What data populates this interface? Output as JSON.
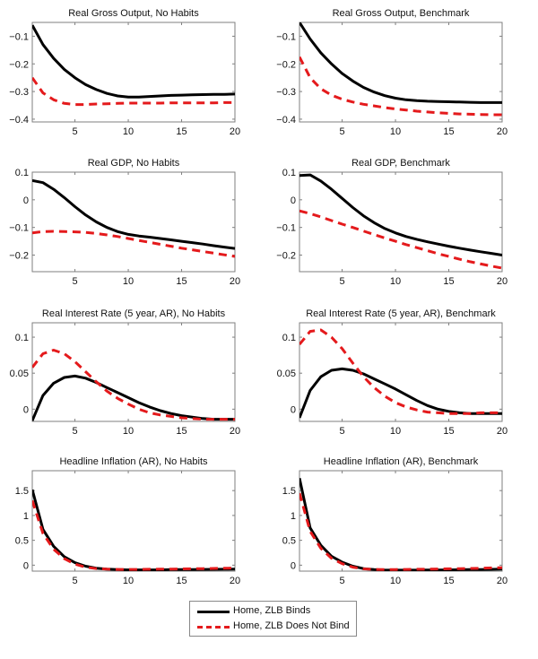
{
  "legend": {
    "items": [
      {
        "label": "Home, ZLB Binds",
        "color": "#000000",
        "style": "solid"
      },
      {
        "label": "Home, ZLB Does Not Bind",
        "color": "#e41a1c",
        "style": "dashed"
      }
    ]
  },
  "chart_data": [
    {
      "type": "line",
      "title": "Real Gross Output, No Habits",
      "xlabel": "",
      "ylabel": "",
      "xlim": [
        1,
        20
      ],
      "ylim": [
        -0.41,
        -0.05
      ],
      "xticks": [
        5,
        10,
        15,
        20
      ],
      "xtick_labels": [
        "5",
        "10",
        "15",
        "20"
      ],
      "yticks": [
        -0.1,
        -0.2,
        -0.3,
        -0.4
      ],
      "ytick_labels": [
        "-0.1",
        "-0.2",
        "-0.3",
        "-0.4"
      ],
      "grid": false,
      "x": [
        1,
        2,
        3,
        4,
        5,
        6,
        7,
        8,
        9,
        10,
        11,
        12,
        13,
        14,
        15,
        16,
        17,
        18,
        19,
        20
      ],
      "series": [
        {
          "name": "Home, ZLB Binds",
          "values": [
            -0.06,
            -0.13,
            -0.18,
            -0.22,
            -0.25,
            -0.275,
            -0.293,
            -0.307,
            -0.316,
            -0.32,
            -0.32,
            -0.318,
            -0.316,
            -0.314,
            -0.313,
            -0.312,
            -0.311,
            -0.31,
            -0.31,
            -0.309
          ]
        },
        {
          "name": "Home, ZLB Does Not Bind",
          "values": [
            -0.25,
            -0.305,
            -0.33,
            -0.343,
            -0.347,
            -0.347,
            -0.345,
            -0.344,
            -0.343,
            -0.342,
            -0.342,
            -0.342,
            -0.342,
            -0.341,
            -0.341,
            -0.341,
            -0.341,
            -0.341,
            -0.34,
            -0.34
          ]
        }
      ]
    },
    {
      "type": "line",
      "title": "Real Gross Output, Benchmark",
      "xlabel": "",
      "ylabel": "",
      "xlim": [
        1,
        20
      ],
      "ylim": [
        -0.41,
        -0.05
      ],
      "xticks": [
        5,
        10,
        15,
        20
      ],
      "xtick_labels": [
        "5",
        "10",
        "15",
        "20"
      ],
      "yticks": [
        -0.1,
        -0.2,
        -0.3,
        -0.4
      ],
      "ytick_labels": [
        "-0.1",
        "-0.2",
        "-0.3",
        "-0.4"
      ],
      "grid": false,
      "x": [
        1,
        2,
        3,
        4,
        5,
        6,
        7,
        8,
        9,
        10,
        11,
        12,
        13,
        14,
        15,
        16,
        17,
        18,
        19,
        20
      ],
      "series": [
        {
          "name": "Home, ZLB Binds",
          "values": [
            -0.05,
            -0.11,
            -0.16,
            -0.2,
            -0.235,
            -0.262,
            -0.285,
            -0.302,
            -0.315,
            -0.324,
            -0.33,
            -0.333,
            -0.335,
            -0.336,
            -0.337,
            -0.338,
            -0.339,
            -0.34,
            -0.34,
            -0.34
          ]
        },
        {
          "name": "Home, ZLB Does Not Bind",
          "values": [
            -0.175,
            -0.25,
            -0.29,
            -0.313,
            -0.328,
            -0.338,
            -0.346,
            -0.352,
            -0.358,
            -0.363,
            -0.367,
            -0.371,
            -0.374,
            -0.377,
            -0.379,
            -0.381,
            -0.382,
            -0.383,
            -0.384,
            -0.384
          ]
        }
      ]
    },
    {
      "type": "line",
      "title": "Real GDP, No Habits",
      "xlabel": "",
      "ylabel": "",
      "xlim": [
        1,
        20
      ],
      "ylim": [
        -0.26,
        0.1
      ],
      "xticks": [
        5,
        10,
        15,
        20
      ],
      "xtick_labels": [
        "5",
        "10",
        "15",
        "20"
      ],
      "yticks": [
        0.1,
        0,
        -0.1,
        -0.2
      ],
      "ytick_labels": [
        "0.1",
        "0",
        "-0.1",
        "-0.2"
      ],
      "grid": false,
      "x": [
        1,
        2,
        3,
        4,
        5,
        6,
        7,
        8,
        9,
        10,
        11,
        12,
        13,
        14,
        15,
        16,
        17,
        18,
        19,
        20
      ],
      "series": [
        {
          "name": "Home, ZLB Binds",
          "values": [
            0.07,
            0.062,
            0.038,
            0.008,
            -0.025,
            -0.055,
            -0.08,
            -0.1,
            -0.115,
            -0.125,
            -0.131,
            -0.135,
            -0.14,
            -0.145,
            -0.15,
            -0.155,
            -0.16,
            -0.166,
            -0.171,
            -0.176
          ]
        },
        {
          "name": "Home, ZLB Does Not Bind",
          "values": [
            -0.12,
            -0.115,
            -0.114,
            -0.115,
            -0.116,
            -0.118,
            -0.122,
            -0.127,
            -0.133,
            -0.14,
            -0.147,
            -0.154,
            -0.161,
            -0.168,
            -0.175,
            -0.181,
            -0.187,
            -0.193,
            -0.199,
            -0.205
          ]
        }
      ]
    },
    {
      "type": "line",
      "title": "Real GDP, Benchmark",
      "xlabel": "",
      "ylabel": "",
      "xlim": [
        1,
        20
      ],
      "ylim": [
        -0.26,
        0.1
      ],
      "xticks": [
        5,
        10,
        15,
        20
      ],
      "xtick_labels": [
        "5",
        "10",
        "15",
        "20"
      ],
      "yticks": [
        0.1,
        0,
        -0.1,
        -0.2
      ],
      "ytick_labels": [
        "0.1",
        "0",
        "-0.1",
        "-0.2"
      ],
      "grid": false,
      "x": [
        1,
        2,
        3,
        4,
        5,
        6,
        7,
        8,
        9,
        10,
        11,
        12,
        13,
        14,
        15,
        16,
        17,
        18,
        19,
        20
      ],
      "series": [
        {
          "name": "Home, ZLB Binds",
          "values": [
            0.088,
            0.09,
            0.068,
            0.038,
            0.005,
            -0.028,
            -0.058,
            -0.083,
            -0.104,
            -0.12,
            -0.133,
            -0.143,
            -0.152,
            -0.16,
            -0.168,
            -0.175,
            -0.182,
            -0.188,
            -0.194,
            -0.2
          ]
        },
        {
          "name": "Home, ZLB Does Not Bind",
          "values": [
            -0.04,
            -0.05,
            -0.062,
            -0.075,
            -0.088,
            -0.1,
            -0.113,
            -0.126,
            -0.138,
            -0.15,
            -0.162,
            -0.173,
            -0.184,
            -0.195,
            -0.205,
            -0.215,
            -0.224,
            -0.232,
            -0.24,
            -0.247
          ]
        }
      ]
    },
    {
      "type": "line",
      "title": "Real Interest Rate (5 year, AR), No Habits",
      "xlabel": "",
      "ylabel": "",
      "xlim": [
        1,
        20
      ],
      "ylim": [
        -0.017,
        0.12
      ],
      "xticks": [
        5,
        10,
        15,
        20
      ],
      "xtick_labels": [
        "5",
        "10",
        "15",
        "20"
      ],
      "yticks": [
        0.1,
        0.05,
        0
      ],
      "ytick_labels": [
        "0.1",
        "0.05",
        "0"
      ],
      "grid": false,
      "x": [
        1,
        2,
        3,
        4,
        5,
        6,
        7,
        8,
        9,
        10,
        11,
        12,
        13,
        14,
        15,
        16,
        17,
        18,
        19,
        20
      ],
      "series": [
        {
          "name": "Home, ZLB Binds",
          "values": [
            -0.016,
            0.019,
            0.036,
            0.044,
            0.046,
            0.043,
            0.037,
            0.03,
            0.023,
            0.016,
            0.009,
            0.003,
            -0.002,
            -0.006,
            -0.009,
            -0.011,
            -0.013,
            -0.014,
            -0.014,
            -0.014
          ]
        },
        {
          "name": "Home, ZLB Does Not Bind",
          "values": [
            0.058,
            0.077,
            0.082,
            0.077,
            0.066,
            0.052,
            0.038,
            0.025,
            0.015,
            0.007,
            0.0,
            -0.005,
            -0.008,
            -0.01,
            -0.012,
            -0.013,
            -0.014,
            -0.014,
            -0.014,
            -0.014
          ]
        }
      ]
    },
    {
      "type": "line",
      "title": "Real Interest Rate (5 year, AR), Benchmark",
      "xlabel": "",
      "ylabel": "",
      "xlim": [
        1,
        20
      ],
      "ylim": [
        -0.017,
        0.12
      ],
      "xticks": [
        5,
        10,
        15,
        20
      ],
      "xtick_labels": [
        "5",
        "10",
        "15",
        "20"
      ],
      "yticks": [
        0.1,
        0.05,
        0
      ],
      "ytick_labels": [
        "0.1",
        "0.05",
        "0"
      ],
      "grid": false,
      "x": [
        1,
        2,
        3,
        4,
        5,
        6,
        7,
        8,
        9,
        10,
        11,
        12,
        13,
        14,
        15,
        16,
        17,
        18,
        19,
        20
      ],
      "series": [
        {
          "name": "Home, ZLB Binds",
          "values": [
            -0.012,
            0.026,
            0.045,
            0.054,
            0.056,
            0.054,
            0.049,
            0.042,
            0.035,
            0.028,
            0.02,
            0.012,
            0.005,
            0.0,
            -0.003,
            -0.005,
            -0.006,
            -0.006,
            -0.006,
            -0.006
          ]
        },
        {
          "name": "Home, ZLB Does Not Bind",
          "values": [
            0.09,
            0.108,
            0.11,
            0.1,
            0.084,
            0.064,
            0.045,
            0.03,
            0.018,
            0.009,
            0.003,
            -0.001,
            -0.004,
            -0.005,
            -0.006,
            -0.006,
            -0.006,
            -0.005,
            -0.005,
            -0.005
          ]
        }
      ]
    },
    {
      "type": "line",
      "title": "Headline Inflation (AR), No Habits",
      "xlabel": "",
      "ylabel": "",
      "xlim": [
        1,
        20
      ],
      "ylim": [
        -0.12,
        1.9
      ],
      "xticks": [
        5,
        10,
        15,
        20
      ],
      "xtick_labels": [
        "5",
        "10",
        "15",
        "20"
      ],
      "yticks": [
        1.5,
        1,
        0.5,
        0
      ],
      "ytick_labels": [
        "1.5",
        "1",
        "0.5",
        "0"
      ],
      "grid": false,
      "x": [
        1,
        2,
        3,
        4,
        5,
        6,
        7,
        8,
        9,
        10,
        11,
        12,
        13,
        14,
        15,
        16,
        17,
        18,
        19,
        20
      ],
      "series": [
        {
          "name": "Home, ZLB Binds",
          "values": [
            1.52,
            0.72,
            0.38,
            0.17,
            0.05,
            -0.02,
            -0.06,
            -0.08,
            -0.09,
            -0.095,
            -0.095,
            -0.095,
            -0.095,
            -0.09,
            -0.09,
            -0.088,
            -0.086,
            -0.084,
            -0.082,
            -0.08
          ]
        },
        {
          "name": "Home, ZLB Does Not Bind",
          "values": [
            1.3,
            0.64,
            0.32,
            0.13,
            0.02,
            -0.04,
            -0.07,
            -0.08,
            -0.085,
            -0.085,
            -0.085,
            -0.083,
            -0.08,
            -0.078,
            -0.075,
            -0.072,
            -0.07,
            -0.066,
            -0.062,
            -0.058
          ]
        }
      ]
    },
    {
      "type": "line",
      "title": "Headline Inflation (AR), Benchmark",
      "xlabel": "",
      "ylabel": "",
      "xlim": [
        1,
        20
      ],
      "ylim": [
        -0.12,
        1.9
      ],
      "xticks": [
        5,
        10,
        15,
        20
      ],
      "xtick_labels": [
        "5",
        "10",
        "15",
        "20"
      ],
      "yticks": [
        1.5,
        1,
        0.5,
        0
      ],
      "ytick_labels": [
        "1.5",
        "1",
        "0.5",
        "0"
      ],
      "grid": false,
      "x": [
        1,
        2,
        3,
        4,
        5,
        6,
        7,
        8,
        9,
        10,
        11,
        12,
        13,
        14,
        15,
        16,
        17,
        18,
        19,
        20
      ],
      "series": [
        {
          "name": "Home, ZLB Binds",
          "values": [
            1.75,
            0.75,
            0.4,
            0.18,
            0.06,
            -0.02,
            -0.07,
            -0.09,
            -0.1,
            -0.1,
            -0.1,
            -0.1,
            -0.098,
            -0.096,
            -0.094,
            -0.092,
            -0.09,
            -0.087,
            -0.084,
            -0.08
          ]
        },
        {
          "name": "Home, ZLB Does Not Bind",
          "values": [
            1.45,
            0.68,
            0.34,
            0.14,
            0.03,
            -0.04,
            -0.075,
            -0.085,
            -0.088,
            -0.088,
            -0.086,
            -0.083,
            -0.08,
            -0.077,
            -0.074,
            -0.07,
            -0.066,
            -0.062,
            -0.055,
            -0.05
          ]
        }
      ]
    }
  ]
}
